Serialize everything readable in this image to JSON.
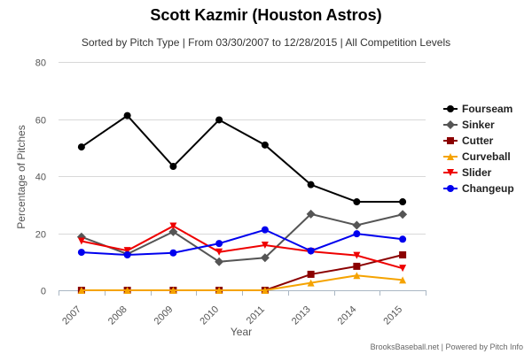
{
  "chart_data": {
    "type": "line",
    "title": "Scott Kazmir (Houston Astros)",
    "subtitle": "Sorted by Pitch Type | From 03/30/2007 to 12/28/2015 | All Competition Levels",
    "xlabel": "Year",
    "ylabel": "Percentage of Pitches",
    "categories": [
      "2007",
      "2008",
      "2009",
      "2010",
      "2011",
      "2013",
      "2014",
      "2015"
    ],
    "ylim": [
      0,
      80
    ],
    "yticks": [
      0,
      20,
      40,
      60,
      80
    ],
    "legend_position": "right",
    "series": [
      {
        "name": "Fourseam",
        "color": "#000000",
        "marker": "circle",
        "values": [
          50.2,
          61.2,
          43.4,
          59.7,
          50.9,
          37.0,
          31.0,
          31.0
        ]
      },
      {
        "name": "Sinker",
        "color": "#555555",
        "marker": "diamond",
        "values": [
          18.7,
          12.7,
          20.5,
          10.0,
          11.4,
          26.7,
          22.8,
          26.6
        ]
      },
      {
        "name": "Cutter",
        "color": "#8b0000",
        "marker": "square",
        "values": [
          0,
          0,
          0,
          0,
          0,
          5.6,
          8.4,
          12.4
        ]
      },
      {
        "name": "Curveball",
        "color": "#f5a300",
        "marker": "triangle-up",
        "values": [
          0,
          0,
          0,
          0,
          0,
          2.6,
          5.2,
          3.6
        ]
      },
      {
        "name": "Slider",
        "color": "#ee0000",
        "marker": "triangle-down",
        "values": [
          17.2,
          13.9,
          22.5,
          13.4,
          15.8,
          13.6,
          12.2,
          7.7
        ]
      },
      {
        "name": "Changeup",
        "color": "#0000ee",
        "marker": "circle",
        "values": [
          13.3,
          12.4,
          13.1,
          16.4,
          21.2,
          13.8,
          19.8,
          17.9
        ]
      }
    ],
    "credit": "BrooksBaseball.net | Powered by Pitch Info"
  }
}
